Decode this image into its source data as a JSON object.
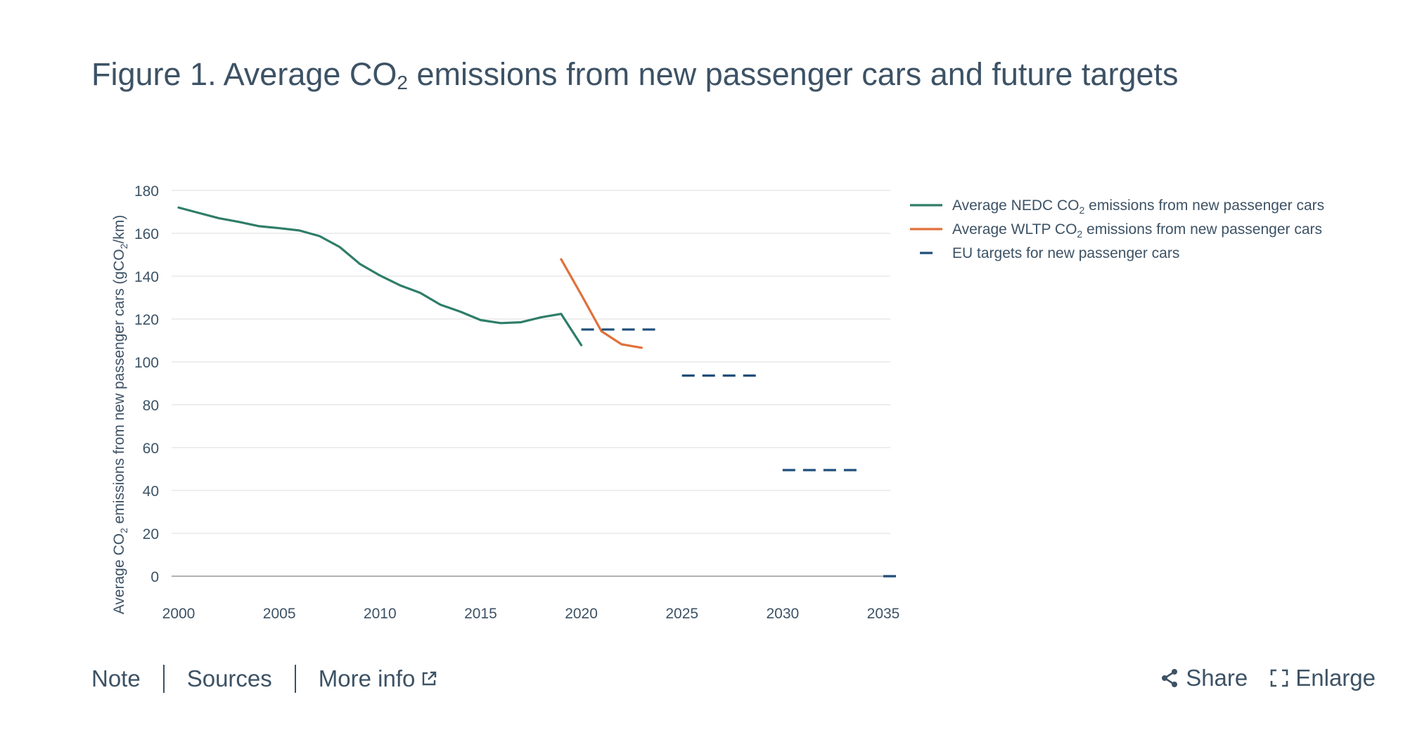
{
  "header": {
    "title_prefix": "Figure 1. Average CO",
    "title_sub": "2",
    "title_suffix": " emissions from new passenger cars and future targets"
  },
  "chart_data": {
    "type": "line",
    "ylabel_prefix": "Average CO",
    "ylabel_sub1": "2",
    "ylabel_mid": " emissions from new passenger cars (gCO",
    "ylabel_sub2": "2",
    "ylabel_suffix": "/km)",
    "xlim": [
      2000,
      2035
    ],
    "ylim": [
      0,
      180
    ],
    "x_ticks": [
      2000,
      2005,
      2010,
      2015,
      2020,
      2025,
      2030,
      2035
    ],
    "y_ticks": [
      0,
      20,
      40,
      60,
      80,
      100,
      120,
      140,
      160,
      180
    ],
    "grid": true,
    "legend_position": "right",
    "series": [
      {
        "name_prefix": "Average NEDC CO",
        "name_sub": "2",
        "name_suffix": " emissions from new passenger cars",
        "color": "#2e7d68",
        "style": "solid",
        "x": [
          2000,
          2001,
          2002,
          2003,
          2004,
          2005,
          2006,
          2007,
          2008,
          2009,
          2010,
          2011,
          2012,
          2013,
          2014,
          2015,
          2016,
          2017,
          2018,
          2019,
          2020
        ],
        "y": [
          172,
          169.5,
          167,
          165.3,
          163.3,
          162.4,
          161.3,
          158.7,
          153.6,
          145.7,
          140.3,
          135.7,
          132.2,
          126.7,
          123.4,
          119.5,
          118.1,
          118.5,
          120.8,
          122.4,
          107.8
        ]
      },
      {
        "name_prefix": "Average WLTP CO",
        "name_sub": "2",
        "name_suffix": " emissions from new passenger cars",
        "color": "#e0703a",
        "style": "solid",
        "x": [
          2019,
          2020,
          2021,
          2022,
          2023
        ],
        "y": [
          147.9,
          131.3,
          114.3,
          108.2,
          106.6
        ]
      },
      {
        "name_prefix": "EU targets for new passenger cars",
        "name_sub": "",
        "name_suffix": "",
        "color": "#1f4e79",
        "style": "dashed",
        "segments": [
          {
            "x": [
              2020,
              2024
            ],
            "y": 115.1
          },
          {
            "x": [
              2025,
              2029
            ],
            "y": 93.6
          },
          {
            "x": [
              2030,
              2034
            ],
            "y": 49.5
          },
          {
            "x": [
              2035,
              2035.8
            ],
            "y": 0
          }
        ]
      }
    ]
  },
  "footer": {
    "note_label": "Note",
    "sources_label": "Sources",
    "more_info_label": "More info"
  },
  "actions": {
    "share_label": "Share",
    "enlarge_label": "Enlarge"
  },
  "colors": {
    "text": "#3d5265",
    "grid": "#e3e3e3",
    "axis": "#9a9a9a"
  }
}
